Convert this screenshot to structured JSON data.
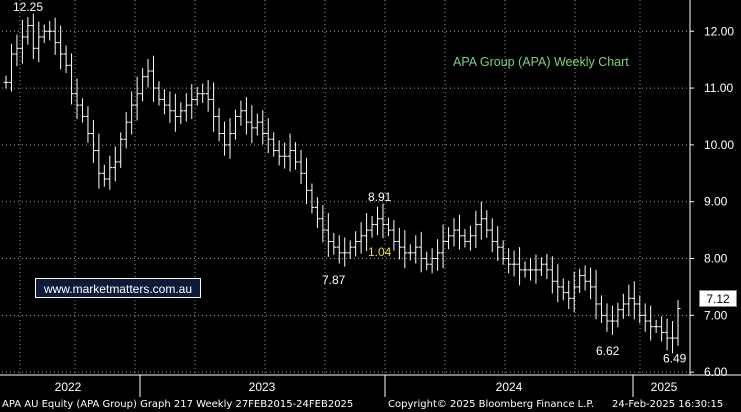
{
  "chart_data": {
    "type": "ohlc",
    "title": "APA Group (APA) Weekly Chart",
    "xlabel": "",
    "ylabel": "",
    "ylim": [
      5.95,
      12.55
    ],
    "y_ticks": [
      "12.00",
      "11.00",
      "10.00",
      "9.00",
      "8.00",
      "7.00",
      "6.00"
    ],
    "x_year_labels": [
      "2022",
      "2023",
      "2024",
      "2025"
    ],
    "grid": true,
    "last_price": "7.12",
    "annotations": [
      {
        "label": "12.25",
        "value": 12.25,
        "kind": "high"
      },
      {
        "label": "8.91",
        "value": 8.91,
        "kind": "high"
      },
      {
        "label": "7.87",
        "value": 7.87,
        "kind": "low"
      },
      {
        "label": "6.62",
        "value": 6.62,
        "kind": "low"
      },
      {
        "label": "6.49",
        "value": 6.49,
        "kind": "low"
      }
    ],
    "ratio_label": "1.04",
    "series": [
      {
        "values": [
          11.1,
          11.6,
          11.7,
          11.9,
          12.1,
          11.7,
          11.9,
          12.0,
          12.0,
          11.8,
          11.6,
          11.4,
          10.9,
          10.7,
          10.5,
          10.2,
          9.9,
          9.5,
          9.4,
          9.6,
          9.7,
          10.1,
          10.4,
          10.7,
          10.9,
          11.2,
          11.3,
          11.0,
          10.8,
          10.7,
          10.6,
          10.5,
          10.6,
          10.7,
          10.8,
          10.9,
          10.9,
          10.8,
          10.5,
          10.2,
          10.0,
          10.2,
          10.5,
          10.6,
          10.4,
          10.3,
          10.4,
          10.2,
          10.1,
          9.9,
          9.8,
          9.8,
          9.9,
          9.7,
          9.5,
          9.2,
          8.9,
          8.7,
          8.5,
          8.3,
          8.2,
          8.1,
          8.1,
          8.2,
          8.3,
          8.4,
          8.5,
          8.6,
          8.7,
          8.6,
          8.5,
          8.3,
          8.2,
          8.1,
          8.1,
          8.2,
          8.0,
          7.9,
          8.0,
          8.1,
          8.3,
          8.4,
          8.5,
          8.4,
          8.3,
          8.4,
          8.6,
          8.7,
          8.5,
          8.3,
          8.2,
          8.0,
          7.9,
          7.9,
          7.8,
          7.8,
          7.8,
          7.8,
          7.9,
          7.8,
          7.6,
          7.5,
          7.4,
          7.3,
          7.5,
          7.7,
          7.6,
          7.5,
          7.2,
          7.0,
          6.9,
          6.9,
          7.1,
          7.2,
          7.3,
          7.2,
          7.0,
          6.9,
          6.8,
          6.8,
          6.7,
          6.6,
          6.6,
          7.12
        ]
      }
    ]
  },
  "watermark": "www.marketmatters.com.au",
  "footer": {
    "left": "APA AU Equity (APA Group) Graph 217  Weekly 27FEB2015-24FEB2025",
    "center": "Copyright© 2025 Bloomberg Finance L.P.",
    "right": "24-Feb-2025 16:30:15"
  }
}
